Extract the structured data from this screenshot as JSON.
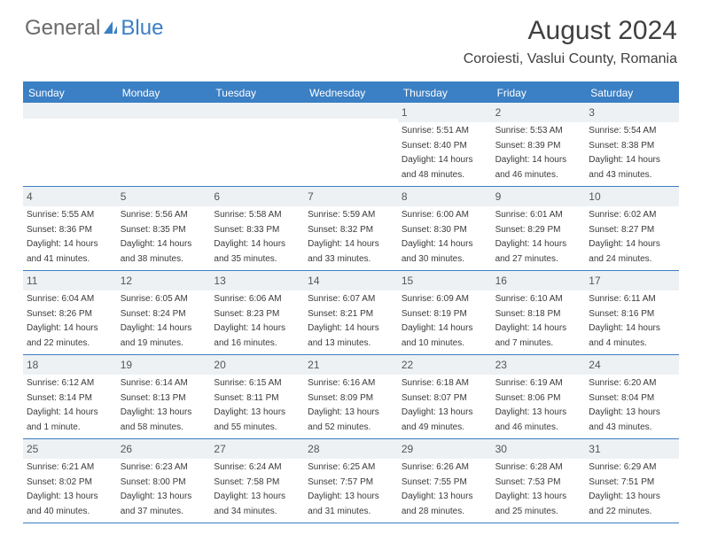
{
  "logo": {
    "part1": "General",
    "part2": "Blue"
  },
  "title": "August 2024",
  "location": "Coroiesti, Vaslui County, Romania",
  "colors": {
    "accent": "#3b7fc4",
    "header_text": "#404040",
    "body_text": "#3a3a3a",
    "daynum_bg": "#eef1f3"
  },
  "dow": [
    "Sunday",
    "Monday",
    "Tuesday",
    "Wednesday",
    "Thursday",
    "Friday",
    "Saturday"
  ],
  "weeks": [
    [
      {
        "n": "",
        "sr": "",
        "ss": "",
        "d1": "",
        "d2": ""
      },
      {
        "n": "",
        "sr": "",
        "ss": "",
        "d1": "",
        "d2": ""
      },
      {
        "n": "",
        "sr": "",
        "ss": "",
        "d1": "",
        "d2": ""
      },
      {
        "n": "",
        "sr": "",
        "ss": "",
        "d1": "",
        "d2": ""
      },
      {
        "n": "1",
        "sr": "Sunrise: 5:51 AM",
        "ss": "Sunset: 8:40 PM",
        "d1": "Daylight: 14 hours",
        "d2": "and 48 minutes."
      },
      {
        "n": "2",
        "sr": "Sunrise: 5:53 AM",
        "ss": "Sunset: 8:39 PM",
        "d1": "Daylight: 14 hours",
        "d2": "and 46 minutes."
      },
      {
        "n": "3",
        "sr": "Sunrise: 5:54 AM",
        "ss": "Sunset: 8:38 PM",
        "d1": "Daylight: 14 hours",
        "d2": "and 43 minutes."
      }
    ],
    [
      {
        "n": "4",
        "sr": "Sunrise: 5:55 AM",
        "ss": "Sunset: 8:36 PM",
        "d1": "Daylight: 14 hours",
        "d2": "and 41 minutes."
      },
      {
        "n": "5",
        "sr": "Sunrise: 5:56 AM",
        "ss": "Sunset: 8:35 PM",
        "d1": "Daylight: 14 hours",
        "d2": "and 38 minutes."
      },
      {
        "n": "6",
        "sr": "Sunrise: 5:58 AM",
        "ss": "Sunset: 8:33 PM",
        "d1": "Daylight: 14 hours",
        "d2": "and 35 minutes."
      },
      {
        "n": "7",
        "sr": "Sunrise: 5:59 AM",
        "ss": "Sunset: 8:32 PM",
        "d1": "Daylight: 14 hours",
        "d2": "and 33 minutes."
      },
      {
        "n": "8",
        "sr": "Sunrise: 6:00 AM",
        "ss": "Sunset: 8:30 PM",
        "d1": "Daylight: 14 hours",
        "d2": "and 30 minutes."
      },
      {
        "n": "9",
        "sr": "Sunrise: 6:01 AM",
        "ss": "Sunset: 8:29 PM",
        "d1": "Daylight: 14 hours",
        "d2": "and 27 minutes."
      },
      {
        "n": "10",
        "sr": "Sunrise: 6:02 AM",
        "ss": "Sunset: 8:27 PM",
        "d1": "Daylight: 14 hours",
        "d2": "and 24 minutes."
      }
    ],
    [
      {
        "n": "11",
        "sr": "Sunrise: 6:04 AM",
        "ss": "Sunset: 8:26 PM",
        "d1": "Daylight: 14 hours",
        "d2": "and 22 minutes."
      },
      {
        "n": "12",
        "sr": "Sunrise: 6:05 AM",
        "ss": "Sunset: 8:24 PM",
        "d1": "Daylight: 14 hours",
        "d2": "and 19 minutes."
      },
      {
        "n": "13",
        "sr": "Sunrise: 6:06 AM",
        "ss": "Sunset: 8:23 PM",
        "d1": "Daylight: 14 hours",
        "d2": "and 16 minutes."
      },
      {
        "n": "14",
        "sr": "Sunrise: 6:07 AM",
        "ss": "Sunset: 8:21 PM",
        "d1": "Daylight: 14 hours",
        "d2": "and 13 minutes."
      },
      {
        "n": "15",
        "sr": "Sunrise: 6:09 AM",
        "ss": "Sunset: 8:19 PM",
        "d1": "Daylight: 14 hours",
        "d2": "and 10 minutes."
      },
      {
        "n": "16",
        "sr": "Sunrise: 6:10 AM",
        "ss": "Sunset: 8:18 PM",
        "d1": "Daylight: 14 hours",
        "d2": "and 7 minutes."
      },
      {
        "n": "17",
        "sr": "Sunrise: 6:11 AM",
        "ss": "Sunset: 8:16 PM",
        "d1": "Daylight: 14 hours",
        "d2": "and 4 minutes."
      }
    ],
    [
      {
        "n": "18",
        "sr": "Sunrise: 6:12 AM",
        "ss": "Sunset: 8:14 PM",
        "d1": "Daylight: 14 hours",
        "d2": "and 1 minute."
      },
      {
        "n": "19",
        "sr": "Sunrise: 6:14 AM",
        "ss": "Sunset: 8:13 PM",
        "d1": "Daylight: 13 hours",
        "d2": "and 58 minutes."
      },
      {
        "n": "20",
        "sr": "Sunrise: 6:15 AM",
        "ss": "Sunset: 8:11 PM",
        "d1": "Daylight: 13 hours",
        "d2": "and 55 minutes."
      },
      {
        "n": "21",
        "sr": "Sunrise: 6:16 AM",
        "ss": "Sunset: 8:09 PM",
        "d1": "Daylight: 13 hours",
        "d2": "and 52 minutes."
      },
      {
        "n": "22",
        "sr": "Sunrise: 6:18 AM",
        "ss": "Sunset: 8:07 PM",
        "d1": "Daylight: 13 hours",
        "d2": "and 49 minutes."
      },
      {
        "n": "23",
        "sr": "Sunrise: 6:19 AM",
        "ss": "Sunset: 8:06 PM",
        "d1": "Daylight: 13 hours",
        "d2": "and 46 minutes."
      },
      {
        "n": "24",
        "sr": "Sunrise: 6:20 AM",
        "ss": "Sunset: 8:04 PM",
        "d1": "Daylight: 13 hours",
        "d2": "and 43 minutes."
      }
    ],
    [
      {
        "n": "25",
        "sr": "Sunrise: 6:21 AM",
        "ss": "Sunset: 8:02 PM",
        "d1": "Daylight: 13 hours",
        "d2": "and 40 minutes."
      },
      {
        "n": "26",
        "sr": "Sunrise: 6:23 AM",
        "ss": "Sunset: 8:00 PM",
        "d1": "Daylight: 13 hours",
        "d2": "and 37 minutes."
      },
      {
        "n": "27",
        "sr": "Sunrise: 6:24 AM",
        "ss": "Sunset: 7:58 PM",
        "d1": "Daylight: 13 hours",
        "d2": "and 34 minutes."
      },
      {
        "n": "28",
        "sr": "Sunrise: 6:25 AM",
        "ss": "Sunset: 7:57 PM",
        "d1": "Daylight: 13 hours",
        "d2": "and 31 minutes."
      },
      {
        "n": "29",
        "sr": "Sunrise: 6:26 AM",
        "ss": "Sunset: 7:55 PM",
        "d1": "Daylight: 13 hours",
        "d2": "and 28 minutes."
      },
      {
        "n": "30",
        "sr": "Sunrise: 6:28 AM",
        "ss": "Sunset: 7:53 PM",
        "d1": "Daylight: 13 hours",
        "d2": "and 25 minutes."
      },
      {
        "n": "31",
        "sr": "Sunrise: 6:29 AM",
        "ss": "Sunset: 7:51 PM",
        "d1": "Daylight: 13 hours",
        "d2": "and 22 minutes."
      }
    ]
  ]
}
